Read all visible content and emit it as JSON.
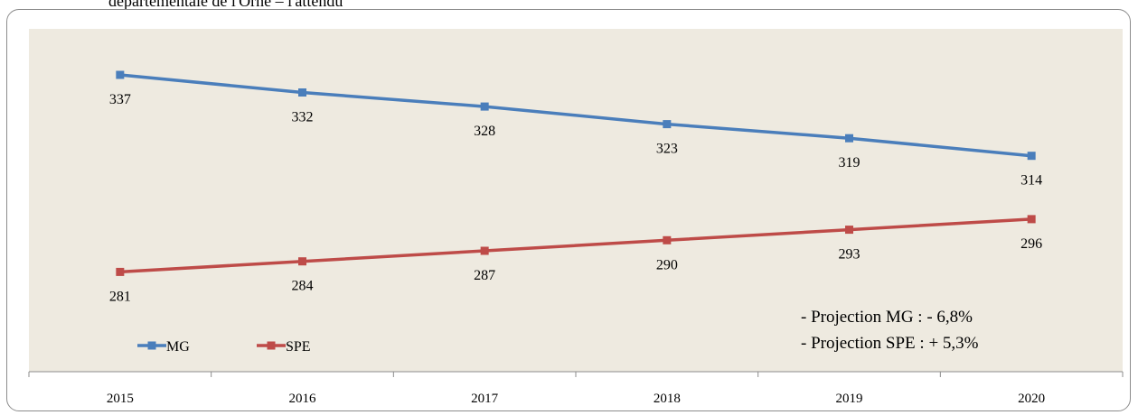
{
  "header": {
    "text": "départementale de l'Orne – l'attendu"
  },
  "annotations": {
    "line1": "-      Projection MG : - 6,8%",
    "line2": "-      Projection SPE : + 5,3%"
  },
  "colors": {
    "MG": "#4a7ebb",
    "SPE": "#be4b48",
    "plot_bg": "#eeeae0"
  },
  "chart_data": {
    "type": "line",
    "categories": [
      "2015",
      "2016",
      "2017",
      "2018",
      "2019",
      "2020"
    ],
    "series": [
      {
        "name": "MG",
        "values": [
          337,
          332,
          328,
          323,
          319,
          314
        ]
      },
      {
        "name": "SPE",
        "values": [
          281,
          284,
          287,
          290,
          293,
          296
        ]
      }
    ],
    "legend": "bottom-left",
    "grid": false
  }
}
